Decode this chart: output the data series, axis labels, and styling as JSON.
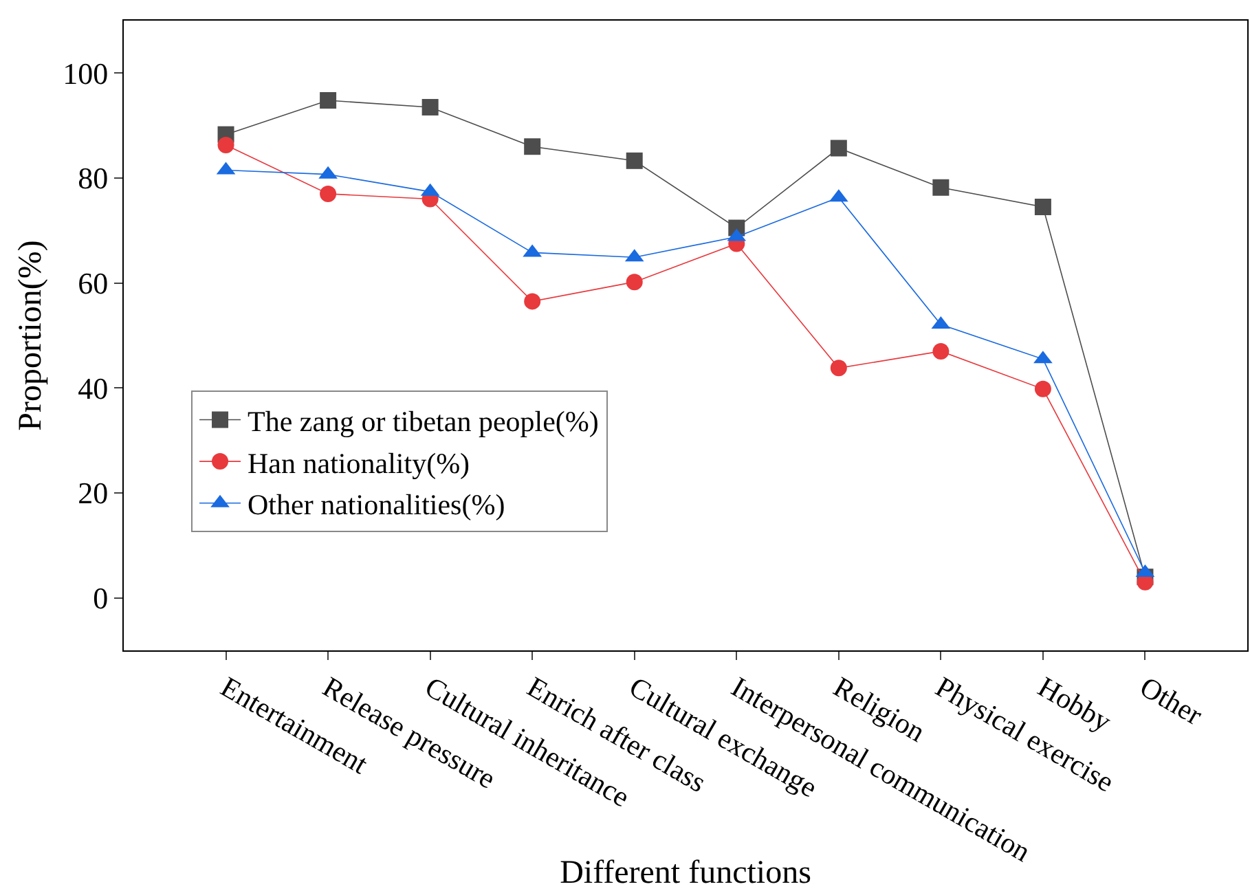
{
  "chart_data": {
    "type": "line",
    "xlabel": "Different functions",
    "ylabel": "Proportion(%)",
    "categories": [
      "Entertainment",
      "Release pressure",
      "Cultural inheritance",
      "Enrich after class",
      "Cultural exchange",
      "Interpersonal communication",
      "Religion",
      "Physical exercise",
      "Hobby",
      "Other"
    ],
    "series": [
      {
        "name": "The zang or tibetan people(%)",
        "color": "#4d4d4d",
        "marker": "square",
        "values": [
          88.3,
          94.8,
          93.5,
          86,
          83.3,
          70.5,
          85.7,
          78.2,
          74.5,
          4
        ]
      },
      {
        "name": "Han nationality(%)",
        "color": "#e8393d",
        "marker": "circle",
        "values": [
          86.3,
          77,
          76,
          56.5,
          60.2,
          67.5,
          43.8,
          47,
          39.8,
          3
        ]
      },
      {
        "name": "Other nationalities(%)",
        "color": "#1a6ae0",
        "marker": "triangle",
        "values": [
          81.5,
          80.7,
          77.4,
          65.8,
          64.9,
          68.8,
          76.3,
          52.1,
          45.5,
          4.8
        ]
      }
    ],
    "ylim": [
      -10,
      110
    ],
    "yticks": [
      0,
      20,
      40,
      60,
      80,
      100
    ],
    "grid": false,
    "legend": "left",
    "line_style": "solid"
  }
}
